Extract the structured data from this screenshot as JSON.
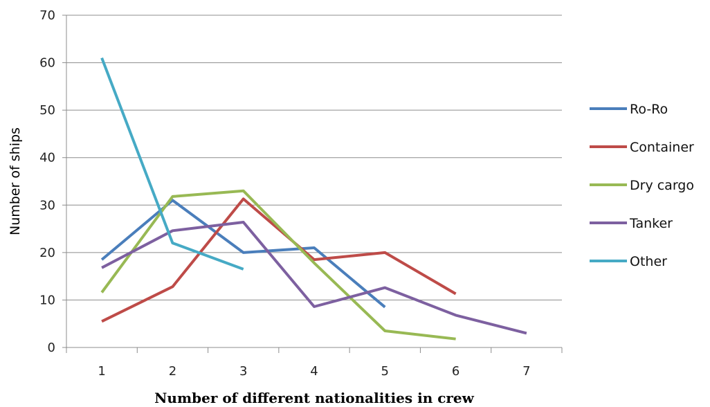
{
  "chart_data": {
    "type": "line",
    "xlabel": "Number of different nationalities in crew",
    "ylabel": "Number of ships",
    "x": [
      1,
      2,
      3,
      4,
      5,
      6,
      7
    ],
    "x_tick_labels": [
      "1",
      "2",
      "3",
      "4",
      "5",
      "6",
      "7"
    ],
    "ylim": [
      0,
      70
    ],
    "y_ticks": [
      0,
      10,
      20,
      30,
      40,
      50,
      60,
      70
    ],
    "grid": "horizontal",
    "legend_position": "right",
    "series": [
      {
        "name": "Ro-Ro",
        "color": "#4a7ebb",
        "values": [
          18.5,
          31,
          20,
          21,
          8.5,
          null,
          null
        ]
      },
      {
        "name": "Container",
        "color": "#be4b48",
        "values": [
          5.5,
          12.8,
          31.3,
          18.5,
          20,
          11.3,
          null
        ]
      },
      {
        "name": "Dry cargo",
        "color": "#98b954",
        "values": [
          11.6,
          31.8,
          33,
          17.8,
          3.5,
          1.8,
          null
        ]
      },
      {
        "name": "Tanker",
        "color": "#7d60a0",
        "values": [
          16.8,
          24.6,
          26.4,
          8.6,
          12.6,
          6.8,
          3
        ]
      },
      {
        "name": "Other",
        "color": "#46aac5",
        "values": [
          61,
          22,
          16.5,
          null,
          null,
          null,
          null
        ]
      }
    ]
  }
}
